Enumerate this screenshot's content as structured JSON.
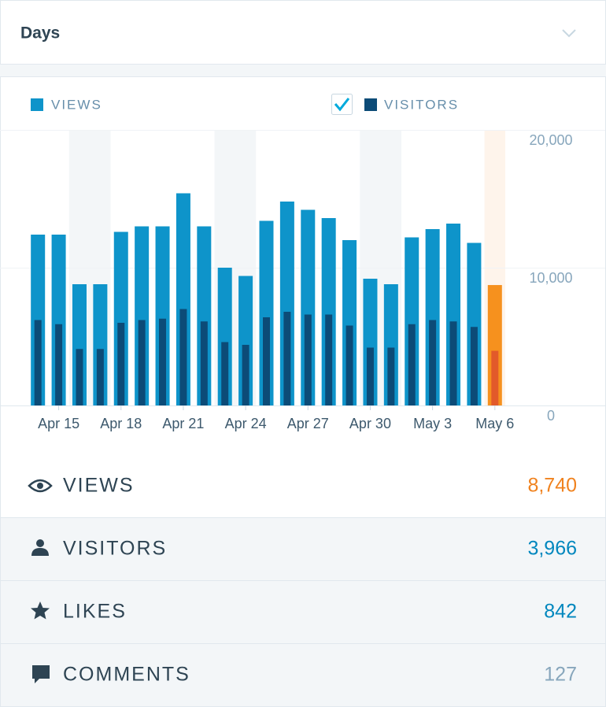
{
  "header": {
    "title": "Days"
  },
  "chart_data": {
    "type": "bar",
    "categories": [
      null,
      "Apr 15",
      null,
      null,
      "Apr 18",
      null,
      null,
      "Apr 21",
      null,
      null,
      "Apr 24",
      null,
      null,
      "Apr 27",
      null,
      null,
      "Apr 30",
      null,
      null,
      "May 3",
      null,
      null,
      "May 6"
    ],
    "series": [
      {
        "name": "VIEWS",
        "color": "#0e94ca",
        "highlight_color": "#f6911e",
        "values": [
          12400,
          12400,
          8800,
          8800,
          12600,
          13000,
          13000,
          15400,
          13000,
          10000,
          9400,
          13400,
          14800,
          14200,
          13600,
          12000,
          9200,
          8800,
          12200,
          12800,
          13200,
          11800,
          8740
        ]
      },
      {
        "name": "VISITORS",
        "color": "#0c4b77",
        "highlight_color": "#e25a2a",
        "values": [
          6200,
          5900,
          4100,
          4100,
          6000,
          6200,
          6300,
          7000,
          6100,
          4600,
          4400,
          6400,
          6800,
          6600,
          6600,
          5800,
          4200,
          4200,
          5900,
          6200,
          6100,
          5700,
          3966
        ]
      }
    ],
    "ylim": [
      0,
      20000
    ],
    "yticks": [
      0,
      {
        "value": 10000,
        "label": "10,000"
      },
      {
        "value": 20000,
        "label": "20,000"
      }
    ],
    "grid": true
  },
  "stats": [
    {
      "label": "VIEWS",
      "value": "8,740",
      "color": "#f0821e"
    },
    {
      "label": "VISITORS",
      "value": "3,966",
      "color": "#0087be"
    },
    {
      "label": "LIKES",
      "value": "842",
      "color": "#0087be"
    },
    {
      "label": "COMMENTS",
      "value": "127",
      "color": "#87a6bc"
    }
  ]
}
